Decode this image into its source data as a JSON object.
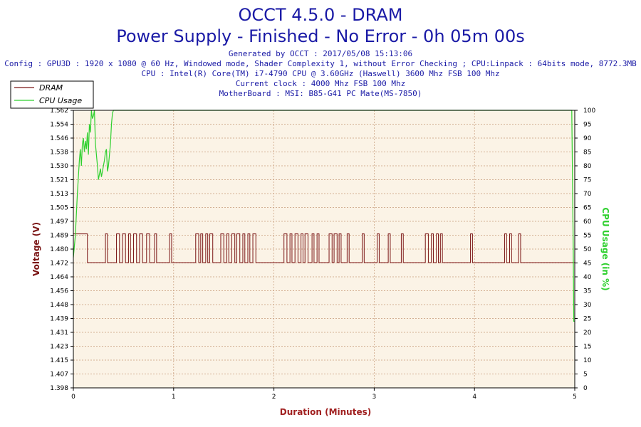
{
  "header": {
    "title": "OCCT 4.5.0 - DRAM",
    "subtitle": "Power Supply - Finished - No Error - 0h 05m 00s",
    "generated": "Generated by OCCT : 2017/05/08 15:13:06",
    "config": "Config : GPU3D : 1920 x 1080 @ 60 Hz, Windowed mode, Shader Complexity 1, without Error Checking ; CPU:Linpack : 64bits mode, 8772.3MB",
    "cpu": "CPU : Intel(R) Core(TM) i7-4790 CPU @ 3.60GHz (Haswell) 3600 Mhz FSB 100 Mhz",
    "clock": "Current clock : 4000 Mhz FSB 100 Mhz",
    "motherboard": "MotherBoard : MSI: B85-G41 PC Mate(MS-7850)"
  },
  "colors": {
    "dram": "#7b1616",
    "cpu": "#2fd02f",
    "plot_bg": "#fbf3e6",
    "grid": "#c69b7a",
    "text_blue": "#1a1aa6",
    "duration_label": "#a02020"
  },
  "chart_data": {
    "type": "line",
    "xlabel": "Duration (Minutes)",
    "ylabel": "Voltage (V)",
    "y2label": "CPU Usage (in %)",
    "xlim": [
      0,
      5
    ],
    "ylim": [
      1.398,
      1.562
    ],
    "y2lim": [
      0,
      100
    ],
    "x_ticks": [
      "0",
      "1",
      "2",
      "3",
      "4",
      "5"
    ],
    "y_ticks": [
      "1.398",
      "1.407",
      "1.415",
      "1.423",
      "1.431",
      "1.439",
      "1.448",
      "1.456",
      "1.464",
      "1.472",
      "1.480",
      "1.489",
      "1.497",
      "1.505",
      "1.513",
      "1.521",
      "1.530",
      "1.538",
      "1.546",
      "1.554",
      "1.562"
    ],
    "y2_ticks": [
      "0",
      "5",
      "10",
      "15",
      "20",
      "25",
      "30",
      "35",
      "40",
      "45",
      "50",
      "55",
      "60",
      "65",
      "70",
      "75",
      "80",
      "85",
      "90",
      "95",
      "100"
    ],
    "grid": true,
    "legend_position": "top-left",
    "series": [
      {
        "name": "DRAM",
        "axis": "left",
        "levels": [
          1.472,
          1.489
        ],
        "high_intervals": [
          [
            0.0,
            0.14
          ],
          [
            0.32,
            0.34
          ],
          [
            0.43,
            0.46
          ],
          [
            0.49,
            0.52
          ],
          [
            0.55,
            0.57
          ],
          [
            0.6,
            0.63
          ],
          [
            0.66,
            0.69
          ],
          [
            0.73,
            0.76
          ],
          [
            0.81,
            0.83
          ],
          [
            0.96,
            0.98
          ],
          [
            1.22,
            1.25
          ],
          [
            1.27,
            1.29
          ],
          [
            1.32,
            1.34
          ],
          [
            1.36,
            1.39
          ],
          [
            1.47,
            1.5
          ],
          [
            1.53,
            1.55
          ],
          [
            1.58,
            1.61
          ],
          [
            1.63,
            1.66
          ],
          [
            1.69,
            1.71
          ],
          [
            1.74,
            1.76
          ],
          [
            1.79,
            1.82
          ],
          [
            2.1,
            2.13
          ],
          [
            2.16,
            2.18
          ],
          [
            2.21,
            2.24
          ],
          [
            2.27,
            2.29
          ],
          [
            2.31,
            2.34
          ],
          [
            2.38,
            2.4
          ],
          [
            2.43,
            2.45
          ],
          [
            2.55,
            2.58
          ],
          [
            2.6,
            2.63
          ],
          [
            2.65,
            2.67
          ],
          [
            2.73,
            2.75
          ],
          [
            2.88,
            2.9
          ],
          [
            3.03,
            3.05
          ],
          [
            3.14,
            3.16
          ],
          [
            3.27,
            3.29
          ],
          [
            3.51,
            3.54
          ],
          [
            3.57,
            3.59
          ],
          [
            3.62,
            3.64
          ],
          [
            3.66,
            3.68
          ],
          [
            3.96,
            3.98
          ],
          [
            4.3,
            4.32
          ],
          [
            4.35,
            4.37
          ],
          [
            4.44,
            4.46
          ]
        ]
      },
      {
        "name": "CPU Usage",
        "axis": "right",
        "x": [
          0,
          0.02,
          0.04,
          0.06,
          0.07,
          0.08,
          0.09,
          0.1,
          0.11,
          0.12,
          0.13,
          0.14,
          0.15,
          0.16,
          0.17,
          0.18,
          0.19,
          0.2,
          0.21,
          0.22,
          0.24,
          0.25,
          0.26,
          0.27,
          0.28,
          0.29,
          0.3,
          0.31,
          0.32,
          0.33,
          0.34,
          0.35,
          0.36,
          0.37,
          0.38,
          0.39,
          0.4,
          0.42,
          1.0,
          2.0,
          3.0,
          4.0,
          4.97,
          4.985,
          4.99,
          5.0
        ],
        "y": [
          47,
          55,
          70,
          82,
          86,
          80,
          88,
          90,
          85,
          89,
          86,
          92,
          84,
          95,
          92,
          100,
          97,
          98,
          100,
          88,
          80,
          75,
          77,
          79,
          76,
          78,
          80,
          82,
          85,
          86,
          78,
          80,
          84,
          88,
          95,
          99,
          100,
          100,
          100,
          100,
          100,
          100,
          100,
          50,
          24,
          24
        ]
      }
    ]
  }
}
